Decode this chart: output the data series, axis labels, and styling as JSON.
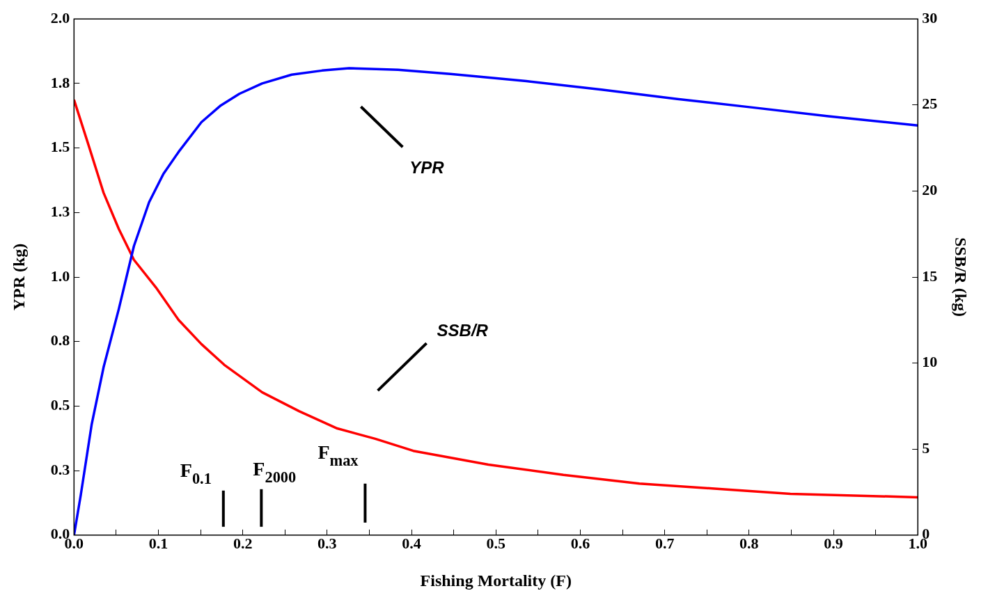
{
  "chart_data": {
    "type": "line",
    "xlabel": "Fishing Mortality (F)",
    "ylabel": "YPR (kg)",
    "y2label": "SSB/R (kg)",
    "xlim": [
      0,
      1
    ],
    "xticks": [
      {
        "value": 0,
        "label": "0.0"
      },
      {
        "value": 0.05,
        "label": null
      },
      {
        "value": 0.1,
        "label": "0.1"
      },
      {
        "value": 0.15,
        "label": null
      },
      {
        "value": 0.2,
        "label": "0.2"
      },
      {
        "value": 0.25,
        "label": null
      },
      {
        "value": 0.3,
        "label": "0.3"
      },
      {
        "value": 0.35,
        "label": null
      },
      {
        "value": 0.4,
        "label": "0.4"
      },
      {
        "value": 0.45,
        "label": null
      },
      {
        "value": 0.5,
        "label": "0.5"
      },
      {
        "value": 0.55,
        "label": null
      },
      {
        "value": 0.6,
        "label": "0.6"
      },
      {
        "value": 0.65,
        "label": null
      },
      {
        "value": 0.7,
        "label": "0.7"
      },
      {
        "value": 0.75,
        "label": null
      },
      {
        "value": 0.8,
        "label": "0.8"
      },
      {
        "value": 0.85,
        "label": null
      },
      {
        "value": 0.9,
        "label": "0.9"
      },
      {
        "value": 0.95,
        "label": null
      },
      {
        "value": 1,
        "label": "1.0"
      }
    ],
    "ylim": [
      0,
      2
    ],
    "yticks": [
      {
        "value": 0,
        "label": "0.0"
      },
      {
        "value": 0.25,
        "label": "0.3"
      },
      {
        "value": 0.5,
        "label": "0.5"
      },
      {
        "value": 0.75,
        "label": "0.8"
      },
      {
        "value": 1,
        "label": "1.0"
      },
      {
        "value": 1.25,
        "label": "1.3"
      },
      {
        "value": 1.5,
        "label": "1.5"
      },
      {
        "value": 1.75,
        "label": "1.8"
      },
      {
        "value": 2,
        "label": "2.0"
      }
    ],
    "y2lim": [
      0,
      30
    ],
    "y2ticks": [
      0,
      5,
      10,
      15,
      20,
      25,
      30
    ],
    "grid": false,
    "legend": false,
    "marker": "none",
    "line_style": "solid",
    "series": [
      {
        "color": "#0000ff",
        "x": [
          0,
          0.008,
          0.021,
          0.035,
          0.053,
          0.071,
          0.089,
          0.106,
          0.124,
          0.151,
          0.174,
          0.196,
          0.223,
          0.258,
          0.294,
          0.326,
          0.384,
          0.446,
          0.536,
          0.625,
          0.715,
          0.804,
          0.894,
          1
        ],
        "values": [
          0,
          0.155,
          0.43,
          0.65,
          0.875,
          1.12,
          1.29,
          1.4,
          1.485,
          1.6,
          1.665,
          1.71,
          1.75,
          1.784,
          1.8,
          1.809,
          1.803,
          1.787,
          1.759,
          1.726,
          1.69,
          1.657,
          1.623,
          1.587
        ]
      },
      {
        "color": "#ff0000",
        "axis": "y2",
        "x": [
          0,
          0.017,
          0.035,
          0.053,
          0.071,
          0.097,
          0.124,
          0.151,
          0.178,
          0.223,
          0.267,
          0.312,
          0.357,
          0.402,
          0.491,
          0.58,
          0.67,
          0.759,
          0.849,
          1
        ],
        "values": [
          25.3,
          22.7,
          19.9,
          17.8,
          16,
          14.4,
          12.5,
          11.1,
          9.9,
          8.3,
          7.2,
          6.2,
          5.6,
          4.9,
          4.1,
          3.5,
          3,
          2.7,
          2.4,
          2.2
        ]
      }
    ],
    "annotations": [
      "YPR",
      "SSB/R"
    ],
    "ref_lines": [
      {
        "axis": "x",
        "value": 0.177,
        "label": "F$_{0.1}$"
      },
      {
        "axis": "x",
        "value": 0.222,
        "label": "F$_{2000}$"
      },
      {
        "axis": "x",
        "value": 0.345,
        "label": "F$_{max}$"
      }
    ]
  }
}
